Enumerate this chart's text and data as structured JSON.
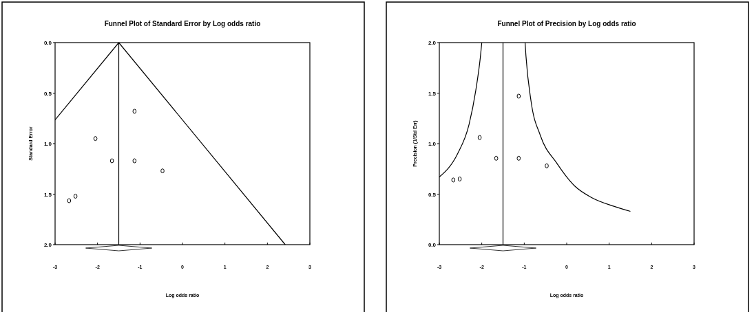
{
  "chart_data": [
    {
      "type": "scatter",
      "title": "Funnel Plot of Standard Error by Log odds ratio",
      "xlabel": "Log odds ratio",
      "ylabel": "Standard Error",
      "xlim": [
        -3,
        3
      ],
      "xticks": [
        -3,
        -2,
        -1,
        0,
        1,
        2,
        3
      ],
      "ylim": [
        2,
        0
      ],
      "yticks": [
        {
          "value": 0,
          "label": "0.0"
        },
        {
          "value": 0.5,
          "label": "0.5"
        },
        {
          "value": 1,
          "label": "1.0"
        },
        {
          "value": 1.5,
          "label": "1.5"
        },
        {
          "value": 2,
          "label": "2.0"
        }
      ],
      "series": [
        {
          "marker": "circle",
          "color": "#000000",
          "x": [
            -1.13,
            -2.05,
            -1.66,
            -1.13,
            -0.47,
            -2.52,
            -2.67
          ],
          "values": [
            0.68,
            0.95,
            1.17,
            1.17,
            1.27,
            1.52,
            1.565
          ]
        },
        {
          "type": "line",
          "color": "#000000",
          "x": [
            -3,
            -1.5
          ],
          "values": [
            0.765,
            0
          ]
        },
        {
          "type": "line",
          "color": "#000000",
          "x": [
            -1.5,
            2.42
          ],
          "values": [
            0,
            2
          ]
        }
      ],
      "ref_lines": [
        {
          "axis": "x",
          "value": -1.5
        }
      ]
    },
    {
      "type": "scatter",
      "title": "Funnel Plot of Precision by Log odds ratio",
      "xlabel": "Log odds ratio",
      "ylabel": "Precision (1/Std Err)",
      "xlim": [
        -3,
        3
      ],
      "xticks": [
        -3,
        -2,
        -1,
        0,
        1,
        2,
        3
      ],
      "ylim": [
        0,
        2
      ],
      "yticks": [
        {
          "value": 0,
          "label": "0.0"
        },
        {
          "value": 0.5,
          "label": "0.5"
        },
        {
          "value": 1,
          "label": "1.0"
        },
        {
          "value": 1.5,
          "label": "1.5"
        },
        {
          "value": 2,
          "label": "2.0"
        }
      ],
      "series": [
        {
          "marker": "circle",
          "color": "#000000",
          "x": [
            -1.13,
            -2.05,
            -1.66,
            -1.13,
            -0.47,
            -2.52,
            -2.67
          ],
          "values": [
            1.47,
            1.06,
            0.855,
            0.855,
            0.78,
            0.65,
            0.64
          ]
        },
        {
          "type": "line",
          "color": "#000000",
          "x": [
            -3,
            -2.57,
            -2.3,
            -2.14,
            -2.03,
            -2.0
          ],
          "values": [
            0.67,
            0.9,
            1.19,
            1.53,
            1.87,
            2.0
          ]
        },
        {
          "type": "line",
          "color": "#000000",
          "x": [
            -0.98,
            -0.96,
            -0.84,
            -0.62,
            -0.24,
            0.19,
            0.57,
            1.11,
            1.5
          ],
          "values": [
            2.0,
            1.87,
            1.42,
            1.08,
            0.81,
            0.58,
            0.47,
            0.38,
            0.33
          ]
        }
      ],
      "ref_lines": [
        {
          "axis": "x",
          "value": -1.5
        }
      ]
    }
  ]
}
